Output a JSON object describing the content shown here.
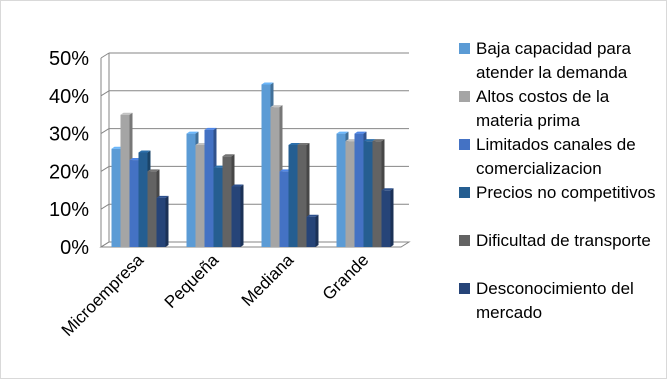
{
  "chart_data": {
    "type": "bar",
    "categories": [
      "Microempresa",
      "Pequeña",
      "Mediana",
      "Grande"
    ],
    "series": [
      {
        "name": "Baja capacidad para atender la demanda",
        "color": "#5b9bd5",
        "values": [
          26,
          30,
          43,
          30
        ]
      },
      {
        "name": "Altos costos de la materia prima",
        "color": "#a5a5a5",
        "values": [
          35,
          27,
          37,
          28
        ]
      },
      {
        "name": "Limitados canales de comercializacion",
        "color": "#4472c4",
        "values": [
          23,
          31,
          20,
          30
        ]
      },
      {
        "name": "Precios no competitivos",
        "color": "#255e91",
        "values": [
          25,
          21,
          27,
          28
        ]
      },
      {
        "name": "Dificultad de transporte",
        "color": "#636363",
        "values": [
          20,
          24,
          27,
          28
        ]
      },
      {
        "name": "Desconocimiento del mercado",
        "color": "#264478",
        "values": [
          13,
          16,
          8,
          15
        ]
      }
    ],
    "ylim": [
      0,
      50
    ],
    "yticks": [
      "0%",
      "10%",
      "20%",
      "30%",
      "40%",
      "50%"
    ],
    "grid": true,
    "legend_position": "right",
    "style": "3d-clustered-column"
  }
}
